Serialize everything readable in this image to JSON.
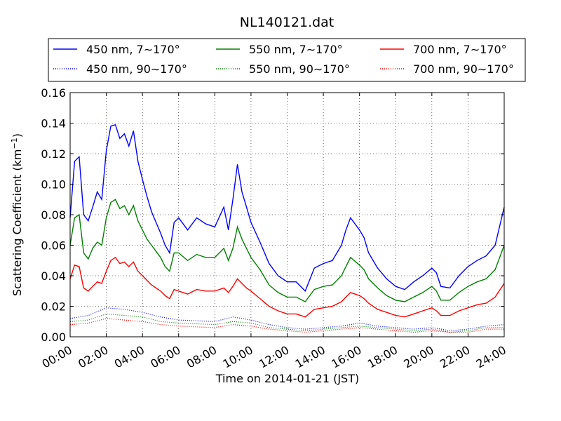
{
  "chart_data": {
    "type": "line",
    "title": "NL140121.dat",
    "xlabel": "Time on 2014-01-21 (JST)",
    "ylabel_prefix": "Scattering Coefficient (km",
    "ylabel_sup": "−1",
    "ylabel_suffix": ")",
    "xlim": [
      "00:00",
      "24:00"
    ],
    "ylim": [
      0,
      0.16
    ],
    "grid": true,
    "grid_style": "dotted",
    "legend_position": "top",
    "x_ticks": [
      "00:00",
      "02:00",
      "04:00",
      "06:00",
      "08:00",
      "10:00",
      "12:00",
      "14:00",
      "16:00",
      "18:00",
      "20:00",
      "22:00",
      "24:00"
    ],
    "y_ticks": [
      "0.00",
      "0.02",
      "0.04",
      "0.06",
      "0.08",
      "0.10",
      "0.12",
      "0.14",
      "0.16"
    ],
    "y_tick_values": [
      0,
      0.02,
      0.04,
      0.06,
      0.08,
      0.1,
      0.12,
      0.14,
      0.16
    ],
    "series": [
      {
        "name": "450 nm, 7∼170°",
        "color": "#0000ff",
        "style": "solid",
        "x": [
          "00:00",
          "00:15",
          "00:30",
          "00:45",
          "01:00",
          "01:15",
          "01:30",
          "01:45",
          "02:00",
          "02:15",
          "02:30",
          "02:45",
          "03:00",
          "03:15",
          "03:30",
          "03:45",
          "04:00",
          "04:15",
          "04:30",
          "04:45",
          "05:00",
          "05:15",
          "05:30",
          "05:45",
          "06:00",
          "06:30",
          "07:00",
          "07:30",
          "08:00",
          "08:30",
          "08:45",
          "09:00",
          "09:15",
          "09:30",
          "09:45",
          "10:00",
          "10:30",
          "11:00",
          "11:30",
          "12:00",
          "12:30",
          "13:00",
          "13:30",
          "14:00",
          "14:30",
          "15:00",
          "15:15",
          "15:30",
          "16:00",
          "16:15",
          "16:30",
          "17:00",
          "17:30",
          "18:00",
          "18:30",
          "19:00",
          "19:30",
          "20:00",
          "20:15",
          "20:30",
          "21:00",
          "21:30",
          "22:00",
          "22:30",
          "23:00",
          "23:30",
          "24:00"
        ],
        "y": [
          0.078,
          0.115,
          0.118,
          0.08,
          0.076,
          0.085,
          0.095,
          0.09,
          0.122,
          0.138,
          0.139,
          0.13,
          0.133,
          0.125,
          0.135,
          0.115,
          0.103,
          0.092,
          0.082,
          0.075,
          0.068,
          0.06,
          0.055,
          0.075,
          0.078,
          0.07,
          0.078,
          0.074,
          0.072,
          0.085,
          0.07,
          0.09,
          0.113,
          0.095,
          0.085,
          0.075,
          0.062,
          0.048,
          0.04,
          0.036,
          0.036,
          0.03,
          0.045,
          0.048,
          0.05,
          0.06,
          0.07,
          0.078,
          0.07,
          0.065,
          0.055,
          0.045,
          0.038,
          0.033,
          0.031,
          0.036,
          0.04,
          0.045,
          0.042,
          0.033,
          0.032,
          0.04,
          0.046,
          0.05,
          0.053,
          0.06,
          0.085
        ]
      },
      {
        "name": "450 nm, 90∼170°",
        "color": "#0000ff",
        "style": "dotted",
        "x": [
          "00:00",
          "01:00",
          "02:00",
          "03:00",
          "04:00",
          "05:00",
          "06:00",
          "08:00",
          "09:00",
          "10:00",
          "11:00",
          "12:00",
          "13:00",
          "14:00",
          "15:00",
          "16:00",
          "17:00",
          "18:00",
          "19:00",
          "20:00",
          "21:00",
          "22:00",
          "23:00",
          "24:00"
        ],
        "y": [
          0.012,
          0.014,
          0.019,
          0.018,
          0.016,
          0.013,
          0.011,
          0.01,
          0.013,
          0.011,
          0.008,
          0.006,
          0.005,
          0.006,
          0.007,
          0.009,
          0.007,
          0.006,
          0.005,
          0.006,
          0.004,
          0.005,
          0.007,
          0.008
        ]
      },
      {
        "name": "550 nm, 7∼170°",
        "color": "#008000",
        "style": "solid",
        "x": [
          "00:00",
          "00:15",
          "00:30",
          "00:45",
          "01:00",
          "01:15",
          "01:30",
          "01:45",
          "02:00",
          "02:15",
          "02:30",
          "02:45",
          "03:00",
          "03:15",
          "03:30",
          "03:45",
          "04:00",
          "04:15",
          "04:30",
          "04:45",
          "05:00",
          "05:15",
          "05:30",
          "05:45",
          "06:00",
          "06:30",
          "07:00",
          "07:30",
          "08:00",
          "08:30",
          "08:45",
          "09:00",
          "09:15",
          "09:30",
          "09:45",
          "10:00",
          "10:30",
          "11:00",
          "11:30",
          "12:00",
          "12:30",
          "13:00",
          "13:30",
          "14:00",
          "14:30",
          "15:00",
          "15:15",
          "15:30",
          "16:00",
          "16:15",
          "16:30",
          "17:00",
          "17:30",
          "18:00",
          "18:30",
          "19:00",
          "19:30",
          "20:00",
          "20:15",
          "20:30",
          "21:00",
          "21:30",
          "22:00",
          "22:30",
          "23:00",
          "23:30",
          "24:00"
        ],
        "y": [
          0.06,
          0.078,
          0.08,
          0.055,
          0.051,
          0.058,
          0.062,
          0.06,
          0.078,
          0.088,
          0.09,
          0.084,
          0.086,
          0.08,
          0.086,
          0.076,
          0.07,
          0.064,
          0.06,
          0.056,
          0.052,
          0.046,
          0.043,
          0.055,
          0.055,
          0.05,
          0.054,
          0.052,
          0.052,
          0.058,
          0.05,
          0.058,
          0.072,
          0.064,
          0.058,
          0.052,
          0.044,
          0.034,
          0.029,
          0.026,
          0.026,
          0.023,
          0.031,
          0.033,
          0.034,
          0.04,
          0.046,
          0.052,
          0.047,
          0.044,
          0.038,
          0.032,
          0.027,
          0.024,
          0.023,
          0.026,
          0.029,
          0.033,
          0.03,
          0.024,
          0.024,
          0.029,
          0.033,
          0.036,
          0.038,
          0.044,
          0.06
        ]
      },
      {
        "name": "550 nm, 90∼170°",
        "color": "#008000",
        "style": "dotted",
        "x": [
          "00:00",
          "01:00",
          "02:00",
          "03:00",
          "04:00",
          "05:00",
          "06:00",
          "08:00",
          "09:00",
          "10:00",
          "11:00",
          "12:00",
          "13:00",
          "14:00",
          "15:00",
          "16:00",
          "17:00",
          "18:00",
          "19:00",
          "20:00",
          "21:00",
          "22:00",
          "23:00",
          "24:00"
        ],
        "y": [
          0.01,
          0.011,
          0.015,
          0.014,
          0.013,
          0.01,
          0.009,
          0.008,
          0.01,
          0.009,
          0.006,
          0.005,
          0.004,
          0.005,
          0.006,
          0.007,
          0.006,
          0.005,
          0.004,
          0.005,
          0.003,
          0.004,
          0.006,
          0.006
        ]
      },
      {
        "name": "700 nm, 7∼170°",
        "color": "#ff0000",
        "style": "solid",
        "x": [
          "00:00",
          "00:15",
          "00:30",
          "00:45",
          "01:00",
          "01:15",
          "01:30",
          "01:45",
          "02:00",
          "02:15",
          "02:30",
          "02:45",
          "03:00",
          "03:15",
          "03:30",
          "03:45",
          "04:00",
          "04:15",
          "04:30",
          "04:45",
          "05:00",
          "05:15",
          "05:30",
          "05:45",
          "06:00",
          "06:30",
          "07:00",
          "07:30",
          "08:00",
          "08:30",
          "08:45",
          "09:00",
          "09:15",
          "09:30",
          "09:45",
          "10:00",
          "10:30",
          "11:00",
          "11:30",
          "12:00",
          "12:30",
          "13:00",
          "13:30",
          "14:00",
          "14:30",
          "15:00",
          "15:15",
          "15:30",
          "16:00",
          "16:15",
          "16:30",
          "17:00",
          "17:30",
          "18:00",
          "18:30",
          "19:00",
          "19:30",
          "20:00",
          "20:15",
          "20:30",
          "21:00",
          "21:30",
          "22:00",
          "22:30",
          "23:00",
          "23:30",
          "24:00"
        ],
        "y": [
          0.038,
          0.047,
          0.046,
          0.032,
          0.03,
          0.033,
          0.036,
          0.035,
          0.043,
          0.05,
          0.052,
          0.048,
          0.049,
          0.046,
          0.049,
          0.043,
          0.04,
          0.037,
          0.034,
          0.032,
          0.03,
          0.027,
          0.025,
          0.031,
          0.03,
          0.028,
          0.031,
          0.03,
          0.03,
          0.032,
          0.029,
          0.033,
          0.038,
          0.035,
          0.032,
          0.03,
          0.025,
          0.02,
          0.017,
          0.015,
          0.015,
          0.013,
          0.018,
          0.019,
          0.02,
          0.023,
          0.026,
          0.029,
          0.027,
          0.025,
          0.022,
          0.018,
          0.016,
          0.014,
          0.013,
          0.015,
          0.017,
          0.019,
          0.017,
          0.014,
          0.014,
          0.017,
          0.019,
          0.021,
          0.022,
          0.026,
          0.035
        ]
      },
      {
        "name": "700 nm, 90∼170°",
        "color": "#ff0000",
        "style": "dotted",
        "x": [
          "00:00",
          "01:00",
          "02:00",
          "03:00",
          "04:00",
          "05:00",
          "06:00",
          "08:00",
          "09:00",
          "10:00",
          "11:00",
          "12:00",
          "13:00",
          "14:00",
          "15:00",
          "16:00",
          "17:00",
          "18:00",
          "19:00",
          "20:00",
          "21:00",
          "22:00",
          "23:00",
          "24:00"
        ],
        "y": [
          0.008,
          0.009,
          0.012,
          0.011,
          0.01,
          0.008,
          0.007,
          0.006,
          0.008,
          0.007,
          0.005,
          0.004,
          0.003,
          0.004,
          0.005,
          0.006,
          0.005,
          0.004,
          0.003,
          0.004,
          0.003,
          0.003,
          0.005,
          0.005
        ]
      }
    ]
  }
}
